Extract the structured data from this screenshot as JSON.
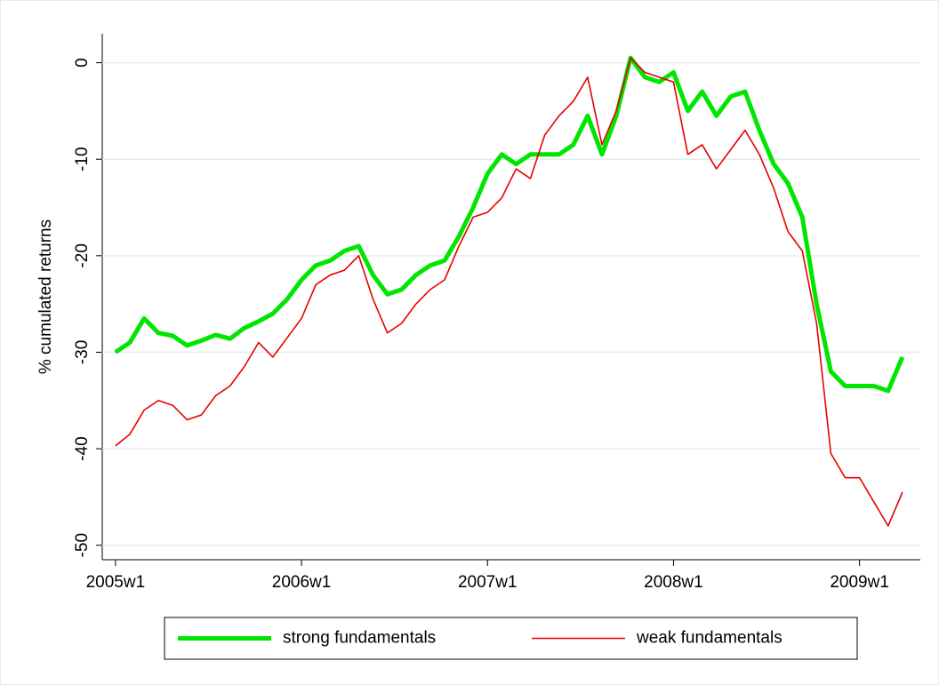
{
  "chart_data": {
    "type": "line",
    "y_label": "% cumulated returns",
    "x": [
      2340,
      2344,
      2348,
      2352,
      2356,
      2360,
      2364,
      2368,
      2372,
      2376,
      2380,
      2384,
      2388,
      2392,
      2396,
      2400,
      2404,
      2408,
      2412,
      2416,
      2420,
      2424,
      2428,
      2432,
      2436,
      2440,
      2444,
      2448,
      2452,
      2456,
      2460,
      2464,
      2468,
      2472,
      2476,
      2480,
      2484,
      2488,
      2492,
      2496,
      2500,
      2504,
      2508,
      2512,
      2516,
      2520,
      2524,
      2528,
      2532,
      2536,
      2540,
      2544,
      2548,
      2552,
      2556,
      2560
    ],
    "series": [
      {
        "name": "strong fundamentals",
        "color": "#00e600",
        "width": 5,
        "values": [
          -30,
          -29,
          -26.5,
          -28,
          -28.3,
          -29.3,
          -28.8,
          -28.2,
          -28.6,
          -27.5,
          -26.8,
          -26,
          -24.5,
          -22.5,
          -21,
          -20.5,
          -19.5,
          -19,
          -22,
          -24,
          -23.5,
          -22,
          -21,
          -20.5,
          -18,
          -15,
          -11.5,
          -9.5,
          -10.5,
          -9.5,
          -9.5,
          -9.5,
          -8.5,
          -5.5,
          -9.5,
          -5.5,
          0.5,
          -1.5,
          -2,
          -1,
          -5,
          -3,
          -5.5,
          -3.5,
          -3,
          -7,
          -10.5,
          -12.5,
          -16,
          -25,
          -32,
          -33.5,
          -33.5,
          -33.5,
          -34,
          -30.5
        ]
      },
      {
        "name": "weak fundamentals",
        "color": "#e60000",
        "width": 1.6,
        "values": [
          -39.7,
          -38.5,
          -36,
          -35,
          -35.5,
          -37,
          -36.5,
          -34.5,
          -33.5,
          -31.5,
          -29,
          -30.5,
          -28.5,
          -26.5,
          -23,
          -22,
          -21.5,
          -20,
          -24.5,
          -28,
          -27,
          -25,
          -23.5,
          -22.5,
          -19,
          -16,
          -15.5,
          -14,
          -11,
          -12,
          -7.5,
          -5.5,
          -4,
          -1.5,
          -8.5,
          -5,
          0.5,
          -1,
          -1.5,
          -2,
          -9.5,
          -8.5,
          -11,
          -9,
          -7,
          -9.5,
          -13,
          -17.5,
          -19.5,
          -27,
          -40.5,
          -43,
          -43,
          -45.5,
          -48,
          -44.5
        ]
      }
    ],
    "xlim": [
      2336.3,
      2565
    ],
    "xticks": [
      {
        "value": 2340,
        "label": "2005w1"
      },
      {
        "value": 2392,
        "label": "2006w1"
      },
      {
        "value": 2444,
        "label": "2007w1"
      },
      {
        "value": 2496,
        "label": "2008w1"
      },
      {
        "value": 2548,
        "label": "2009w1"
      }
    ],
    "ylim": [
      -51.5,
      3
    ],
    "yticks": [
      -50,
      -40,
      -30,
      -20,
      -10,
      0
    ],
    "grid": true,
    "legend": "bottom"
  }
}
